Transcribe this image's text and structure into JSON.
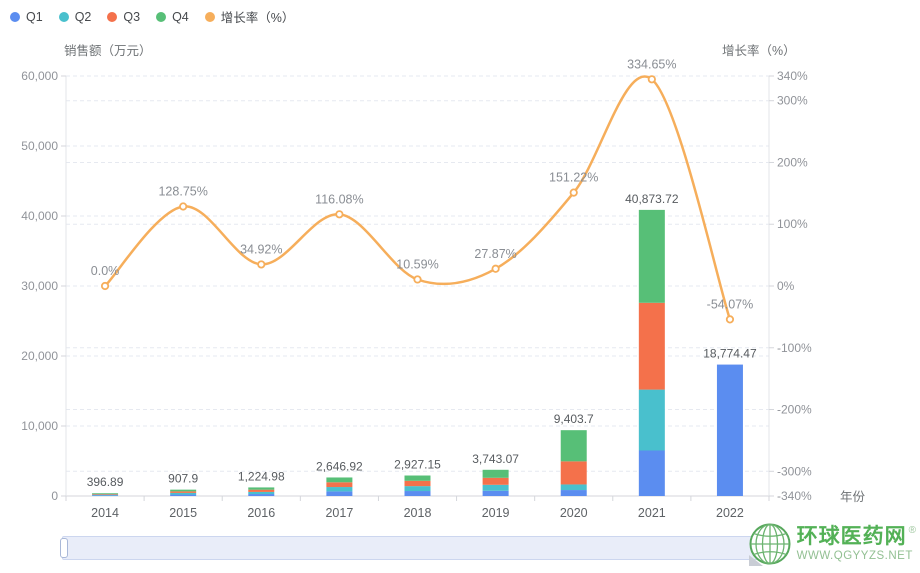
{
  "watermark": {
    "title": "环球医药网",
    "reg": "®",
    "url": "WWW.QGYYZS.NET"
  },
  "chart_data": {
    "type": "bar",
    "subtype": "stacked-bars-with-line",
    "categories": [
      "2014",
      "2015",
      "2016",
      "2017",
      "2018",
      "2019",
      "2020",
      "2021",
      "2022"
    ],
    "series": [
      {
        "name": "Q1",
        "type": "bar",
        "color": "#5b8df0",
        "values": [
          90,
          210,
          280,
          660,
          710,
          750,
          850,
          6500,
          18774.47
        ]
      },
      {
        "name": "Q2",
        "type": "bar",
        "color": "#49c0cd",
        "values": [
          110,
          230,
          300,
          620,
          700,
          850,
          800,
          8700,
          0
        ]
      },
      {
        "name": "Q3",
        "type": "bar",
        "color": "#f4714b",
        "values": [
          90,
          220,
          320,
          680,
          760,
          1000,
          3300,
          12400,
          0
        ]
      },
      {
        "name": "Q4",
        "type": "bar",
        "color": "#57bf77",
        "values": [
          106.89,
          247.9,
          324.98,
          686.92,
          757.15,
          1143.07,
          4453.7,
          13273.72,
          0
        ]
      },
      {
        "name": "增长率（%）",
        "type": "line",
        "color": "#f6ae5b",
        "values": [
          0.0,
          128.75,
          34.92,
          116.08,
          10.59,
          27.87,
          151.22,
          334.65,
          -54.07
        ],
        "labels": [
          "0.0%",
          "128.75%",
          "34.92%",
          "116.08%",
          "10.59%",
          "27.87%",
          "151.22%",
          "334.65%",
          "-54.07%"
        ]
      }
    ],
    "totals": {
      "values": [
        396.89,
        907.9,
        1224.98,
        2646.92,
        2927.15,
        3743.07,
        9403.7,
        40873.72,
        18774.47
      ],
      "labels": [
        "396.89",
        "907.9",
        "1,224.98",
        "2,646.92",
        "2,927.15",
        "3,743.07",
        "9,403.7",
        "40,873.72",
        "18,774.47"
      ]
    },
    "left_axis": {
      "name": "销售额（万元）",
      "min": 0,
      "max": 60000,
      "ticks": [
        {
          "v": 60000,
          "label": "60,000"
        },
        {
          "v": 50000,
          "label": "50,000"
        },
        {
          "v": 40000,
          "label": "40,000"
        },
        {
          "v": 30000,
          "label": "30,000"
        },
        {
          "v": 20000,
          "label": "20,000"
        },
        {
          "v": 10000,
          "label": "10,000"
        },
        {
          "v": 0,
          "label": "0"
        }
      ]
    },
    "right_axis": {
      "name": "增长率（%）",
      "min": -340,
      "max": 340,
      "ticks": [
        {
          "v": 340,
          "label": "340%"
        },
        {
          "v": 300,
          "label": "300%"
        },
        {
          "v": 200,
          "label": "200%"
        },
        {
          "v": 100,
          "label": "100%"
        },
        {
          "v": 0,
          "label": "0%"
        },
        {
          "v": -100,
          "label": "-100%"
        },
        {
          "v": -200,
          "label": "-200%"
        },
        {
          "v": -300,
          "label": "-300%"
        },
        {
          "v": -340,
          "label": "-340%"
        }
      ]
    },
    "x_axis": {
      "name": "年份"
    },
    "grid": true,
    "legend_position": "top-left",
    "colors_note": {
      "grid_line": "#e6e9f0",
      "axis_line": "#d4d6db",
      "tick_text": "#909399",
      "category_text": "#5e6266",
      "total_label": "#575b5f",
      "growth_label": "#8a8e94"
    }
  }
}
